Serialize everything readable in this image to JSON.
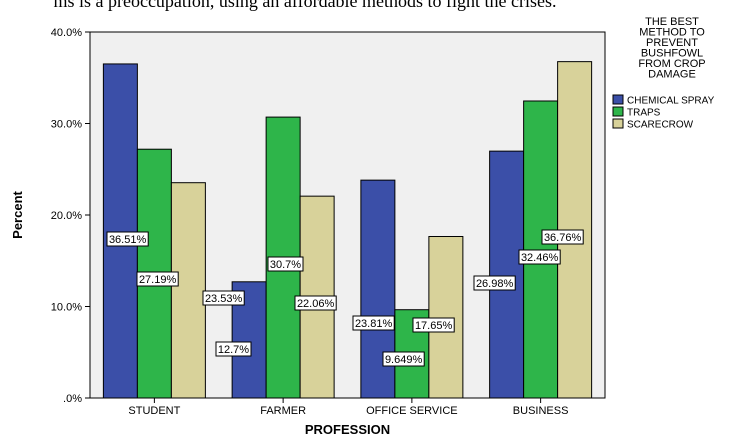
{
  "page": {
    "caption_fragment": "ms is a preoccupation, using an affordable methods to fight the crises."
  },
  "chart_data": {
    "type": "bar",
    "xlabel": "PROFESSION",
    "ylabel": "Percent",
    "ylim": [
      0,
      40
    ],
    "yticks": [
      ".0%",
      "10.0%",
      "20.0%",
      "30.0%",
      "40.0%"
    ],
    "grid": false,
    "legend_position": "right",
    "legend_title": [
      "THE BEST",
      "METHOD TO",
      "PREVENT",
      "BUSHFOWL",
      "FROM CROP",
      "DAMAGE"
    ],
    "categories": [
      "STUDENT",
      "FARMER",
      "OFFICE SERVICE",
      "BUSINESS"
    ],
    "series": [
      {
        "name": "CHEMICAL SPRAY",
        "color": "#3b4fa8",
        "values": [
          36.51,
          12.7,
          23.81,
          26.98
        ],
        "labels": [
          "36.51%",
          "12.7%",
          "23.81%",
          "26.98%"
        ]
      },
      {
        "name": "TRAPS",
        "color": "#2eb54a",
        "values": [
          27.19,
          30.7,
          9.649,
          32.46
        ],
        "labels": [
          "27.19%",
          "30.7%",
          "9.649%",
          "32.46%"
        ]
      },
      {
        "name": "SCARECROW",
        "color": "#d8d29a",
        "values": [
          23.53,
          22.06,
          17.65,
          36.76
        ],
        "labels": [
          "23.53%",
          "22.06%",
          "17.65%",
          "36.76%"
        ]
      }
    ],
    "plot_background": "#f0f0f0"
  }
}
